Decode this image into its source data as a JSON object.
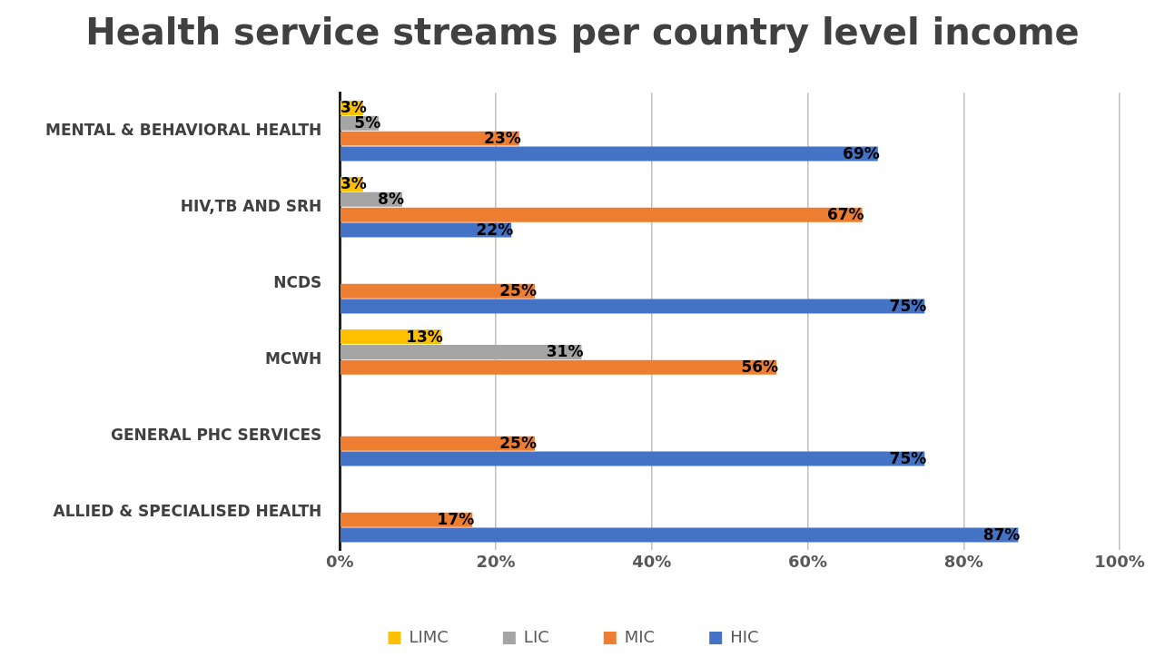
{
  "chart_data": {
    "type": "bar",
    "orientation": "horizontal",
    "title": "Health service streams per country level income",
    "categories": [
      "MENTAL & BEHAVIORAL HEALTH",
      "HIV,TB AND SRH",
      "NCDS",
      "MCWH",
      "GENERAL PHC SERVICES",
      "ALLIED & SPECIALISED HEALTH"
    ],
    "series": [
      {
        "name": "LIMC",
        "color": "#ffc000",
        "values": [
          3,
          3,
          null,
          13,
          null,
          null
        ],
        "value_labels": [
          "3%",
          "3%",
          null,
          "13%",
          null,
          null
        ]
      },
      {
        "name": "LIC",
        "color": "#a5a5a5",
        "values": [
          5,
          8,
          null,
          31,
          null,
          null
        ],
        "value_labels": [
          "5%",
          "8%",
          null,
          "31%",
          null,
          null
        ]
      },
      {
        "name": "MIC",
        "color": "#ed7d31",
        "values": [
          23,
          67,
          25,
          56,
          25,
          17
        ],
        "value_labels": [
          "23%",
          "67%",
          "25%",
          "56%",
          "25%",
          "17%"
        ]
      },
      {
        "name": "HIC",
        "color": "#4472c4",
        "values": [
          69,
          22,
          75,
          null,
          75,
          87
        ],
        "value_labels": [
          "69%",
          "22%",
          "75%",
          null,
          "75%",
          "87%"
        ]
      }
    ],
    "xlim": [
      0,
      100
    ],
    "xticks": [
      {
        "value": 0,
        "label": "0%"
      },
      {
        "value": 20,
        "label": "20%"
      },
      {
        "value": 40,
        "label": "40%"
      },
      {
        "value": 60,
        "label": "60%"
      },
      {
        "value": 80,
        "label": "80%"
      },
      {
        "value": 100,
        "label": "100%"
      }
    ],
    "grid": "x",
    "legend": "bottom"
  }
}
